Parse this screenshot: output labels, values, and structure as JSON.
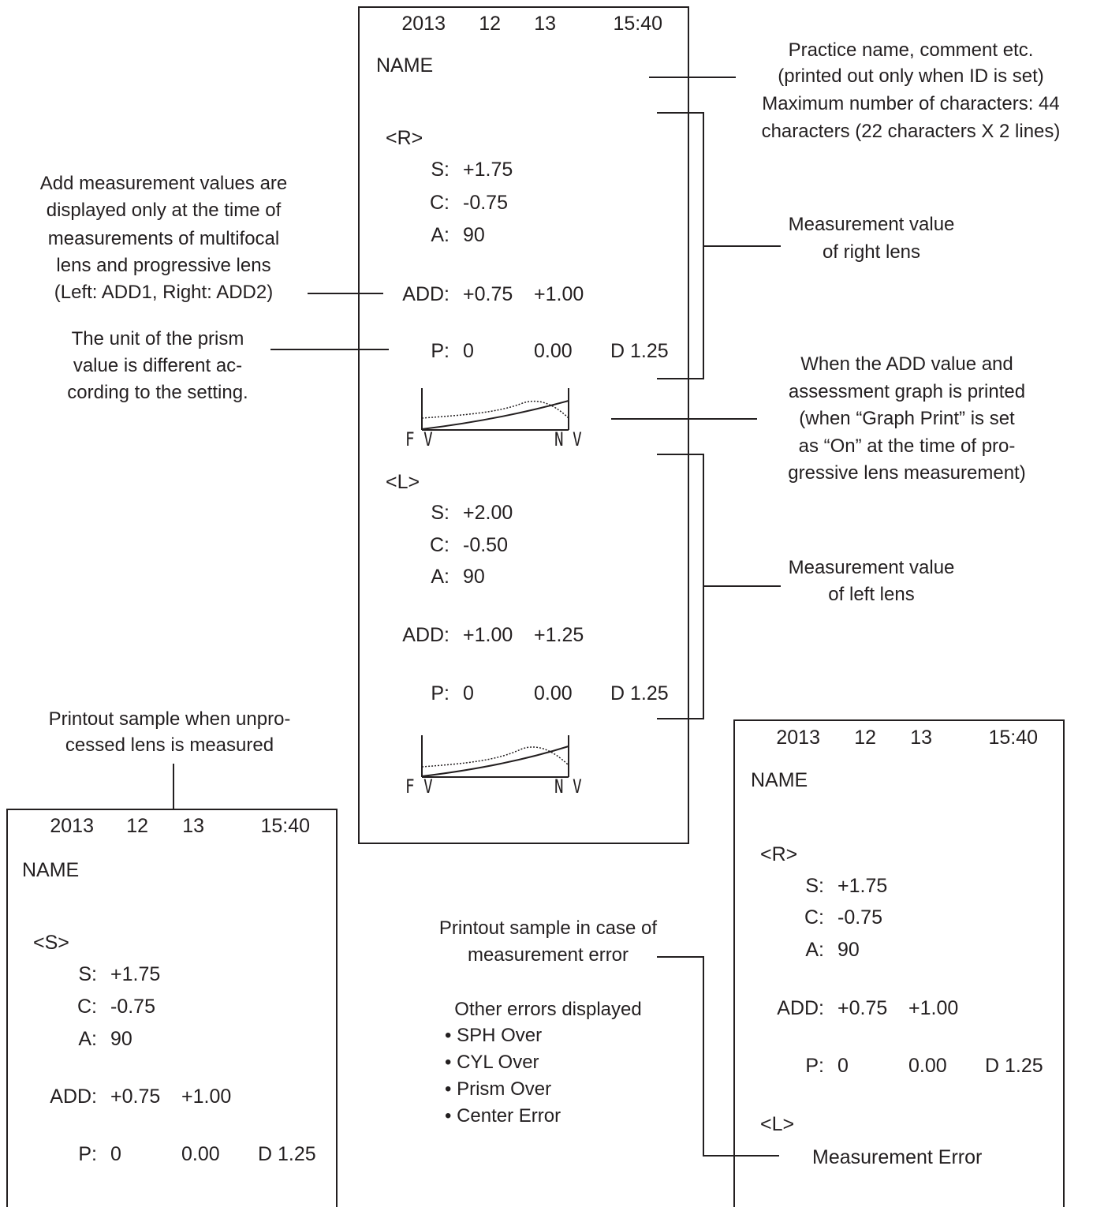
{
  "main_printout": {
    "year": "2013",
    "month": "12",
    "day": "13",
    "time": "15:40",
    "name": "NAME",
    "right": {
      "header": "<R>",
      "s_label": "S:",
      "s_value": "+1.75",
      "c_label": "C:",
      "c_value": "-0.75",
      "a_label": "A:",
      "a_value": "90",
      "add_label": "ADD:",
      "add1": "+0.75",
      "add2": "+1.00",
      "p_label": "P:",
      "p1": "0",
      "p2": "0.00",
      "p3": "D 1.25"
    },
    "right_graph": {
      "left_label": "F V",
      "right_label": "N V"
    },
    "left": {
      "header": "<L>",
      "s_label": "S:",
      "s_value": "+2.00",
      "c_label": "C:",
      "c_value": "-0.50",
      "a_label": "A:",
      "a_value": "90",
      "add_label": "ADD:",
      "add1": "+1.00",
      "add2": "+1.25",
      "p_label": "P:",
      "p1": "0",
      "p2": "0.00",
      "p3": "D 1.25"
    },
    "left_graph": {
      "left_label": "F V",
      "right_label": "N V"
    }
  },
  "unprocessed_printout": {
    "caption_line1": "Printout sample when unpro-",
    "caption_line2": "cessed lens is measured",
    "year": "2013",
    "month": "12",
    "day": "13",
    "time": "15:40",
    "name": "NAME",
    "header": "<S>",
    "s_label": "S:",
    "s_value": "+1.75",
    "c_label": "C:",
    "c_value": "-0.75",
    "a_label": "A:",
    "a_value": "90",
    "add_label": "ADD:",
    "add1": "+0.75",
    "add2": "+1.00",
    "p_label": "P:",
    "p1": "0",
    "p2": "0.00",
    "p3": "D 1.25"
  },
  "error_printout": {
    "year": "2013",
    "month": "12",
    "day": "13",
    "time": "15:40",
    "name": "NAME",
    "header": "<R>",
    "s_label": "S:",
    "s_value": "+1.75",
    "c_label": "C:",
    "c_value": "-0.75",
    "a_label": "A:",
    "a_value": "90",
    "add_label": "ADD:",
    "add1": "+0.75",
    "add2": "+1.00",
    "p_label": "P:",
    "p1": "0",
    "p2": "0.00",
    "p3": "D 1.25",
    "left_header": "<L>",
    "error_text": "Measurement Error"
  },
  "annotations": {
    "practice_name": [
      "Practice name, comment etc.",
      "(printed out only when ID is set)",
      "Maximum number of characters: 44",
      "characters (22 characters X 2 lines)"
    ],
    "add_values": [
      "Add measurement values are",
      "displayed only at the time of",
      "measurements of multifocal",
      "lens and progressive lens",
      "(Left: ADD1, Right: ADD2)"
    ],
    "prism_unit": [
      "The unit of the prism",
      "value is different ac-",
      "cording to the setting."
    ],
    "right_lens": [
      "Measurement value",
      "of right lens"
    ],
    "graph_print": [
      "When the ADD value and",
      "assessment graph is printed",
      "(when “Graph Print” is set",
      "as “On” at the time of pro-",
      "gressive lens measurement)"
    ],
    "left_lens": [
      "Measurement value",
      "of left lens"
    ],
    "error_caption": [
      "Printout sample in case of",
      "measurement error"
    ],
    "other_errors_title": "Other errors displayed",
    "other_errors": [
      "SPH Over",
      "CYL Over",
      "Prism Over",
      "Center Error"
    ]
  }
}
